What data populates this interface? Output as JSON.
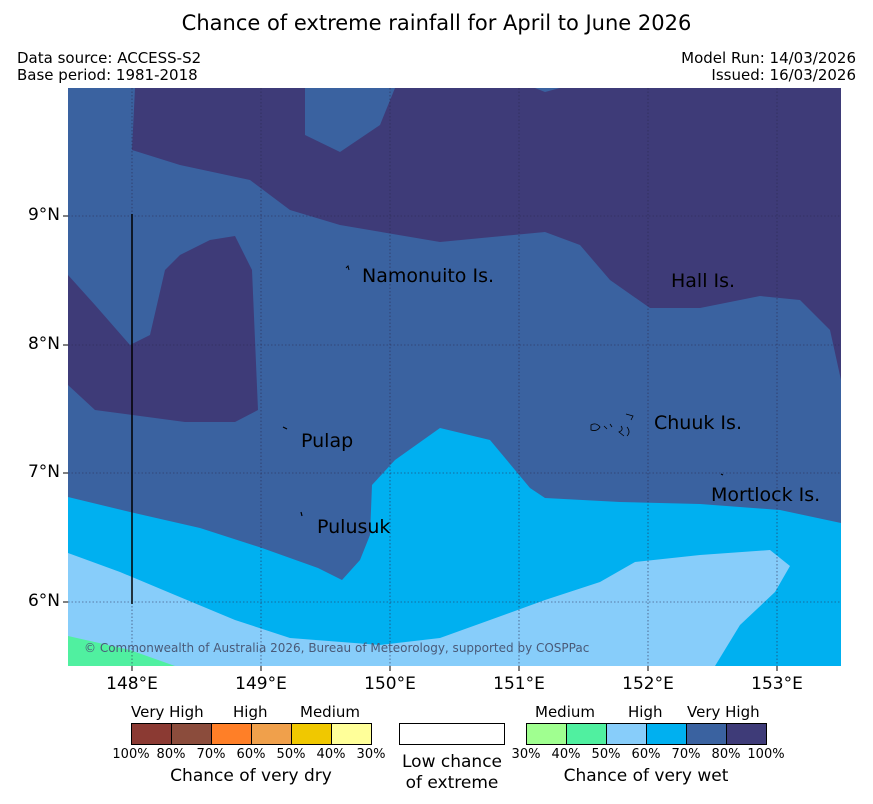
{
  "header": {
    "title": "Chance of extreme rainfall for April to June 2026",
    "data_source": "Data source: ACCESS-S2",
    "base_period": "Base period: 1981-2018",
    "model_run": "Model Run: 14/03/2026",
    "issued": "Issued: 16/03/2026"
  },
  "map": {
    "latitude_labels": [
      "9°N",
      "8°N",
      "7°N",
      "6°N"
    ],
    "longitude_labels": [
      "148°E",
      "149°E",
      "150°E",
      "151°E",
      "152°E",
      "153°E"
    ],
    "places": {
      "namonuito": "Namonuito Is.",
      "hall": "Hall Is.",
      "pulap": "Pulap",
      "chuuk": "Chuuk Is.",
      "mortlock": "Mortlock Is.",
      "pulusuk": "Pulusuk"
    },
    "copyright": "© Commonwealth of Australia 2026, Bureau of Meteorology, supported by COSPPac"
  },
  "legend": {
    "dry": {
      "labels": {
        "very_high": "Very High",
        "high": "High",
        "medium": "Medium"
      },
      "ticks": [
        "100%",
        "80%",
        "70%",
        "60%",
        "50%",
        "40%",
        "30%"
      ],
      "colors": [
        "#8b3a33",
        "#8b4c3c",
        "#ff7f27",
        "#f0a04b",
        "#f0c800",
        "#ffff99"
      ],
      "title": "Chance of very dry"
    },
    "neutral": {
      "line1": "Low chance",
      "line2": "of extreme"
    },
    "wet": {
      "labels": {
        "medium": "Medium",
        "high": "High",
        "very_high": "Very High"
      },
      "ticks": [
        "30%",
        "40%",
        "50%",
        "60%",
        "70%",
        "80%",
        "100%"
      ],
      "colors": [
        "#a0ff90",
        "#50f0a0",
        "#87cdfa",
        "#00b0f0",
        "#3a62a0",
        "#3e3b78"
      ],
      "title": "Chance of very wet"
    }
  }
}
